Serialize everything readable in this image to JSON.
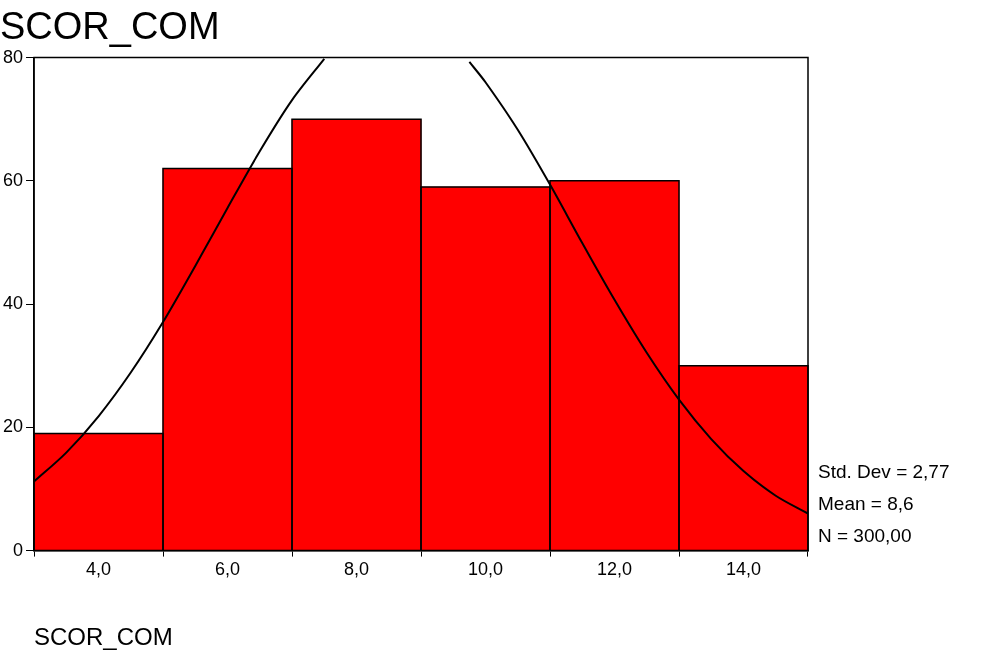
{
  "chart_data": {
    "type": "histogram",
    "title": "SCOR_COM",
    "xlabel": "SCOR_COM",
    "bins": [
      3,
      5,
      7,
      9,
      11,
      13,
      15
    ],
    "values": [
      19,
      62,
      70,
      59,
      60,
      30
    ],
    "color": "#ff0000",
    "series": [
      {
        "type": "line",
        "color": "#000000",
        "x": [
          3,
          3.5,
          4,
          4.5,
          5,
          5.5,
          6,
          6.5,
          7,
          7.5,
          7.75,
          8,
          9,
          9.5,
          9.75,
          10,
          10.5,
          11,
          11.5,
          12,
          12.5,
          13,
          13.5,
          14,
          14.5,
          15
        ],
        "values": [
          11.2,
          15.9,
          21.8,
          28.9,
          37.1,
          46.2,
          55.6,
          64.8,
          73.1,
          79.8,
          null,
          null,
          null,
          null,
          79.3,
          76.0,
          68.3,
          59.4,
          49.9,
          40.7,
          32.1,
          24.5,
          18.1,
          12.9,
          8.9,
          6.0
        ]
      }
    ],
    "xlim": [
      3,
      15
    ],
    "xticks": [
      {
        "value": 4,
        "label": "4,0"
      },
      {
        "value": 6,
        "label": "6,0"
      },
      {
        "value": 8,
        "label": "8,0"
      },
      {
        "value": 10,
        "label": "10,0"
      },
      {
        "value": 12,
        "label": "12,0"
      },
      {
        "value": 14,
        "label": "14,0"
      }
    ],
    "ylim": [
      0,
      80
    ],
    "yticks": [
      0,
      20,
      40,
      60,
      80
    ],
    "annotations": [
      "Std. Dev = 2,77",
      "Mean = 8,6",
      "N = 300,00"
    ],
    "grid": false,
    "legend": false,
    "marker": "none"
  }
}
